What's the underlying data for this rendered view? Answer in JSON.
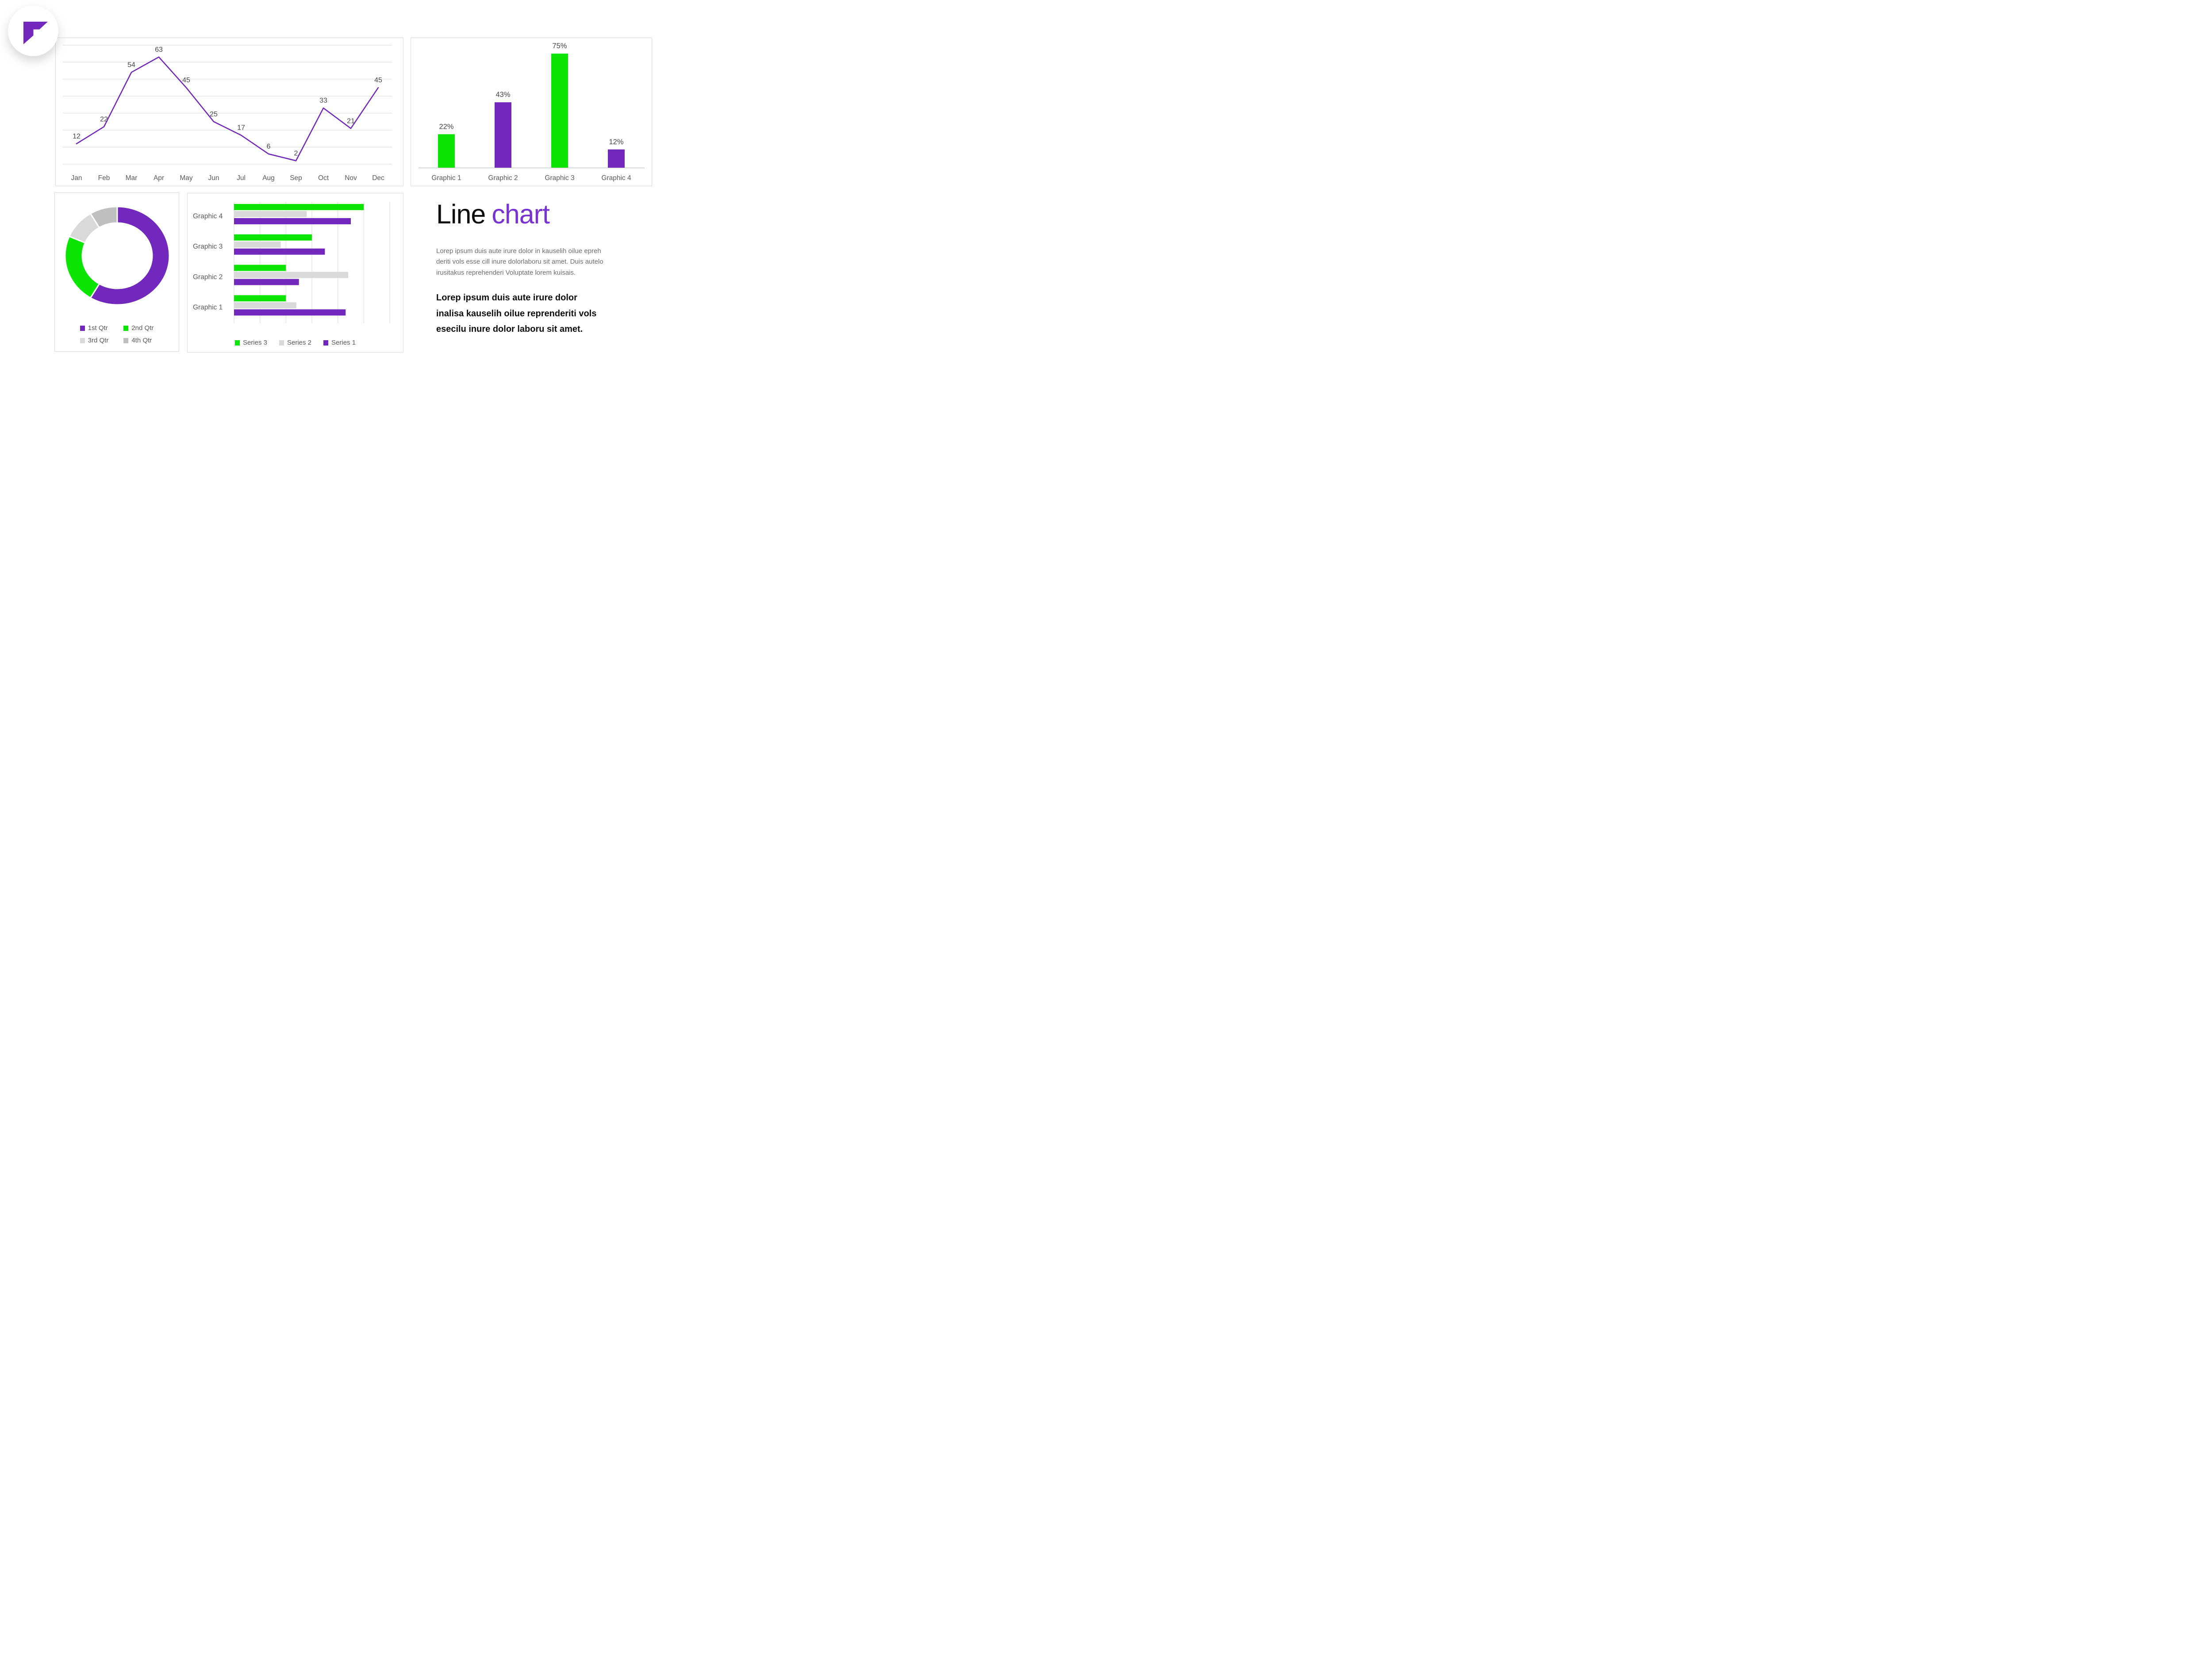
{
  "colors": {
    "purple": "#7228BC",
    "green": "#0CE504",
    "light_gray": "#D9D9D9",
    "mid_gray": "#BFBFBF",
    "grid": "#DADADA",
    "axis_line": "#C9C9C9",
    "axis_label": "#595959",
    "value_label": "#474747",
    "card_border": "#DCDCDC",
    "title_accent": "#7933D4",
    "title_black": "#0D0D0D",
    "body_gray": "#6F6F6F",
    "body_dark": "#0E0E0E"
  },
  "logo": {
    "name": "flag-logo",
    "color": "#7228BC"
  },
  "chart_data": [
    {
      "id": "monthly-line",
      "type": "line",
      "title": "",
      "categories": [
        "Jan",
        "Feb",
        "Mar",
        "Apr",
        "May",
        "Jun",
        "Jul",
        "Aug",
        "Sep",
        "Oct",
        "Nov",
        "Dec"
      ],
      "values": [
        12,
        22,
        54,
        63,
        45,
        25,
        17,
        6,
        2,
        33,
        21,
        45
      ],
      "ylim": [
        0,
        70
      ],
      "grid": true,
      "gridline_step": 10,
      "line_color_key": "purple",
      "data_labels_shown": true,
      "legend_position": "none"
    },
    {
      "id": "percent-column",
      "type": "bar",
      "orientation": "vertical",
      "categories": [
        "Graphic 1",
        "Graphic 2",
        "Graphic 3",
        "Graphic 4"
      ],
      "values": [
        22,
        43,
        75,
        12
      ],
      "data_labels": [
        "22%",
        "43%",
        "75%",
        "12%"
      ],
      "bar_color_keys": [
        "green",
        "purple",
        "green",
        "purple"
      ],
      "ylim": [
        0,
        80
      ],
      "grid": false,
      "legend_position": "none"
    },
    {
      "id": "quarter-donut",
      "type": "pie",
      "donut": true,
      "labels": [
        "1st Qtr",
        "2nd Qtr",
        "3rd Qtr",
        "4th Qtr"
      ],
      "values": [
        8.2,
        3.2,
        1.4,
        1.2
      ],
      "slice_color_keys": [
        "purple",
        "green",
        "light_gray",
        "mid_gray"
      ],
      "legend_position": "bottom"
    },
    {
      "id": "series-hbar",
      "type": "bar",
      "orientation": "horizontal",
      "categories": [
        "Graphic 1",
        "Graphic 2",
        "Graphic 3",
        "Graphic 4"
      ],
      "series": [
        {
          "name": "Series 1",
          "color_key": "purple",
          "values": [
            4.3,
            2.5,
            3.5,
            4.5
          ]
        },
        {
          "name": "Series 2",
          "color_key": "light_gray",
          "values": [
            2.4,
            4.4,
            1.8,
            2.8
          ]
        },
        {
          "name": "Series 3",
          "color_key": "green",
          "values": [
            2,
            2,
            3,
            5
          ]
        }
      ],
      "xlim": [
        0,
        6
      ],
      "grid": true,
      "gridline_step": 1,
      "legend_order": [
        "Series 3",
        "Series 2",
        "Series 1"
      ],
      "legend_position": "bottom"
    }
  ],
  "text_panel": {
    "title_black": "Line",
    "title_accent": "chart",
    "body_gray": "Lorep  ipsum duis aute irure dolor in kauselih oilue epreh\nderiti vols esse cill inure dolorlaboru sit amet. Duis autelo\nirusitakus reprehenderi Voluptate lorem kuisais.",
    "body_bold": "Lorep  ipsum duis aute irure dolor\ninalisa kauselih oilue reprenderiti vols\nesecilu inure dolor laboru sit amet."
  }
}
